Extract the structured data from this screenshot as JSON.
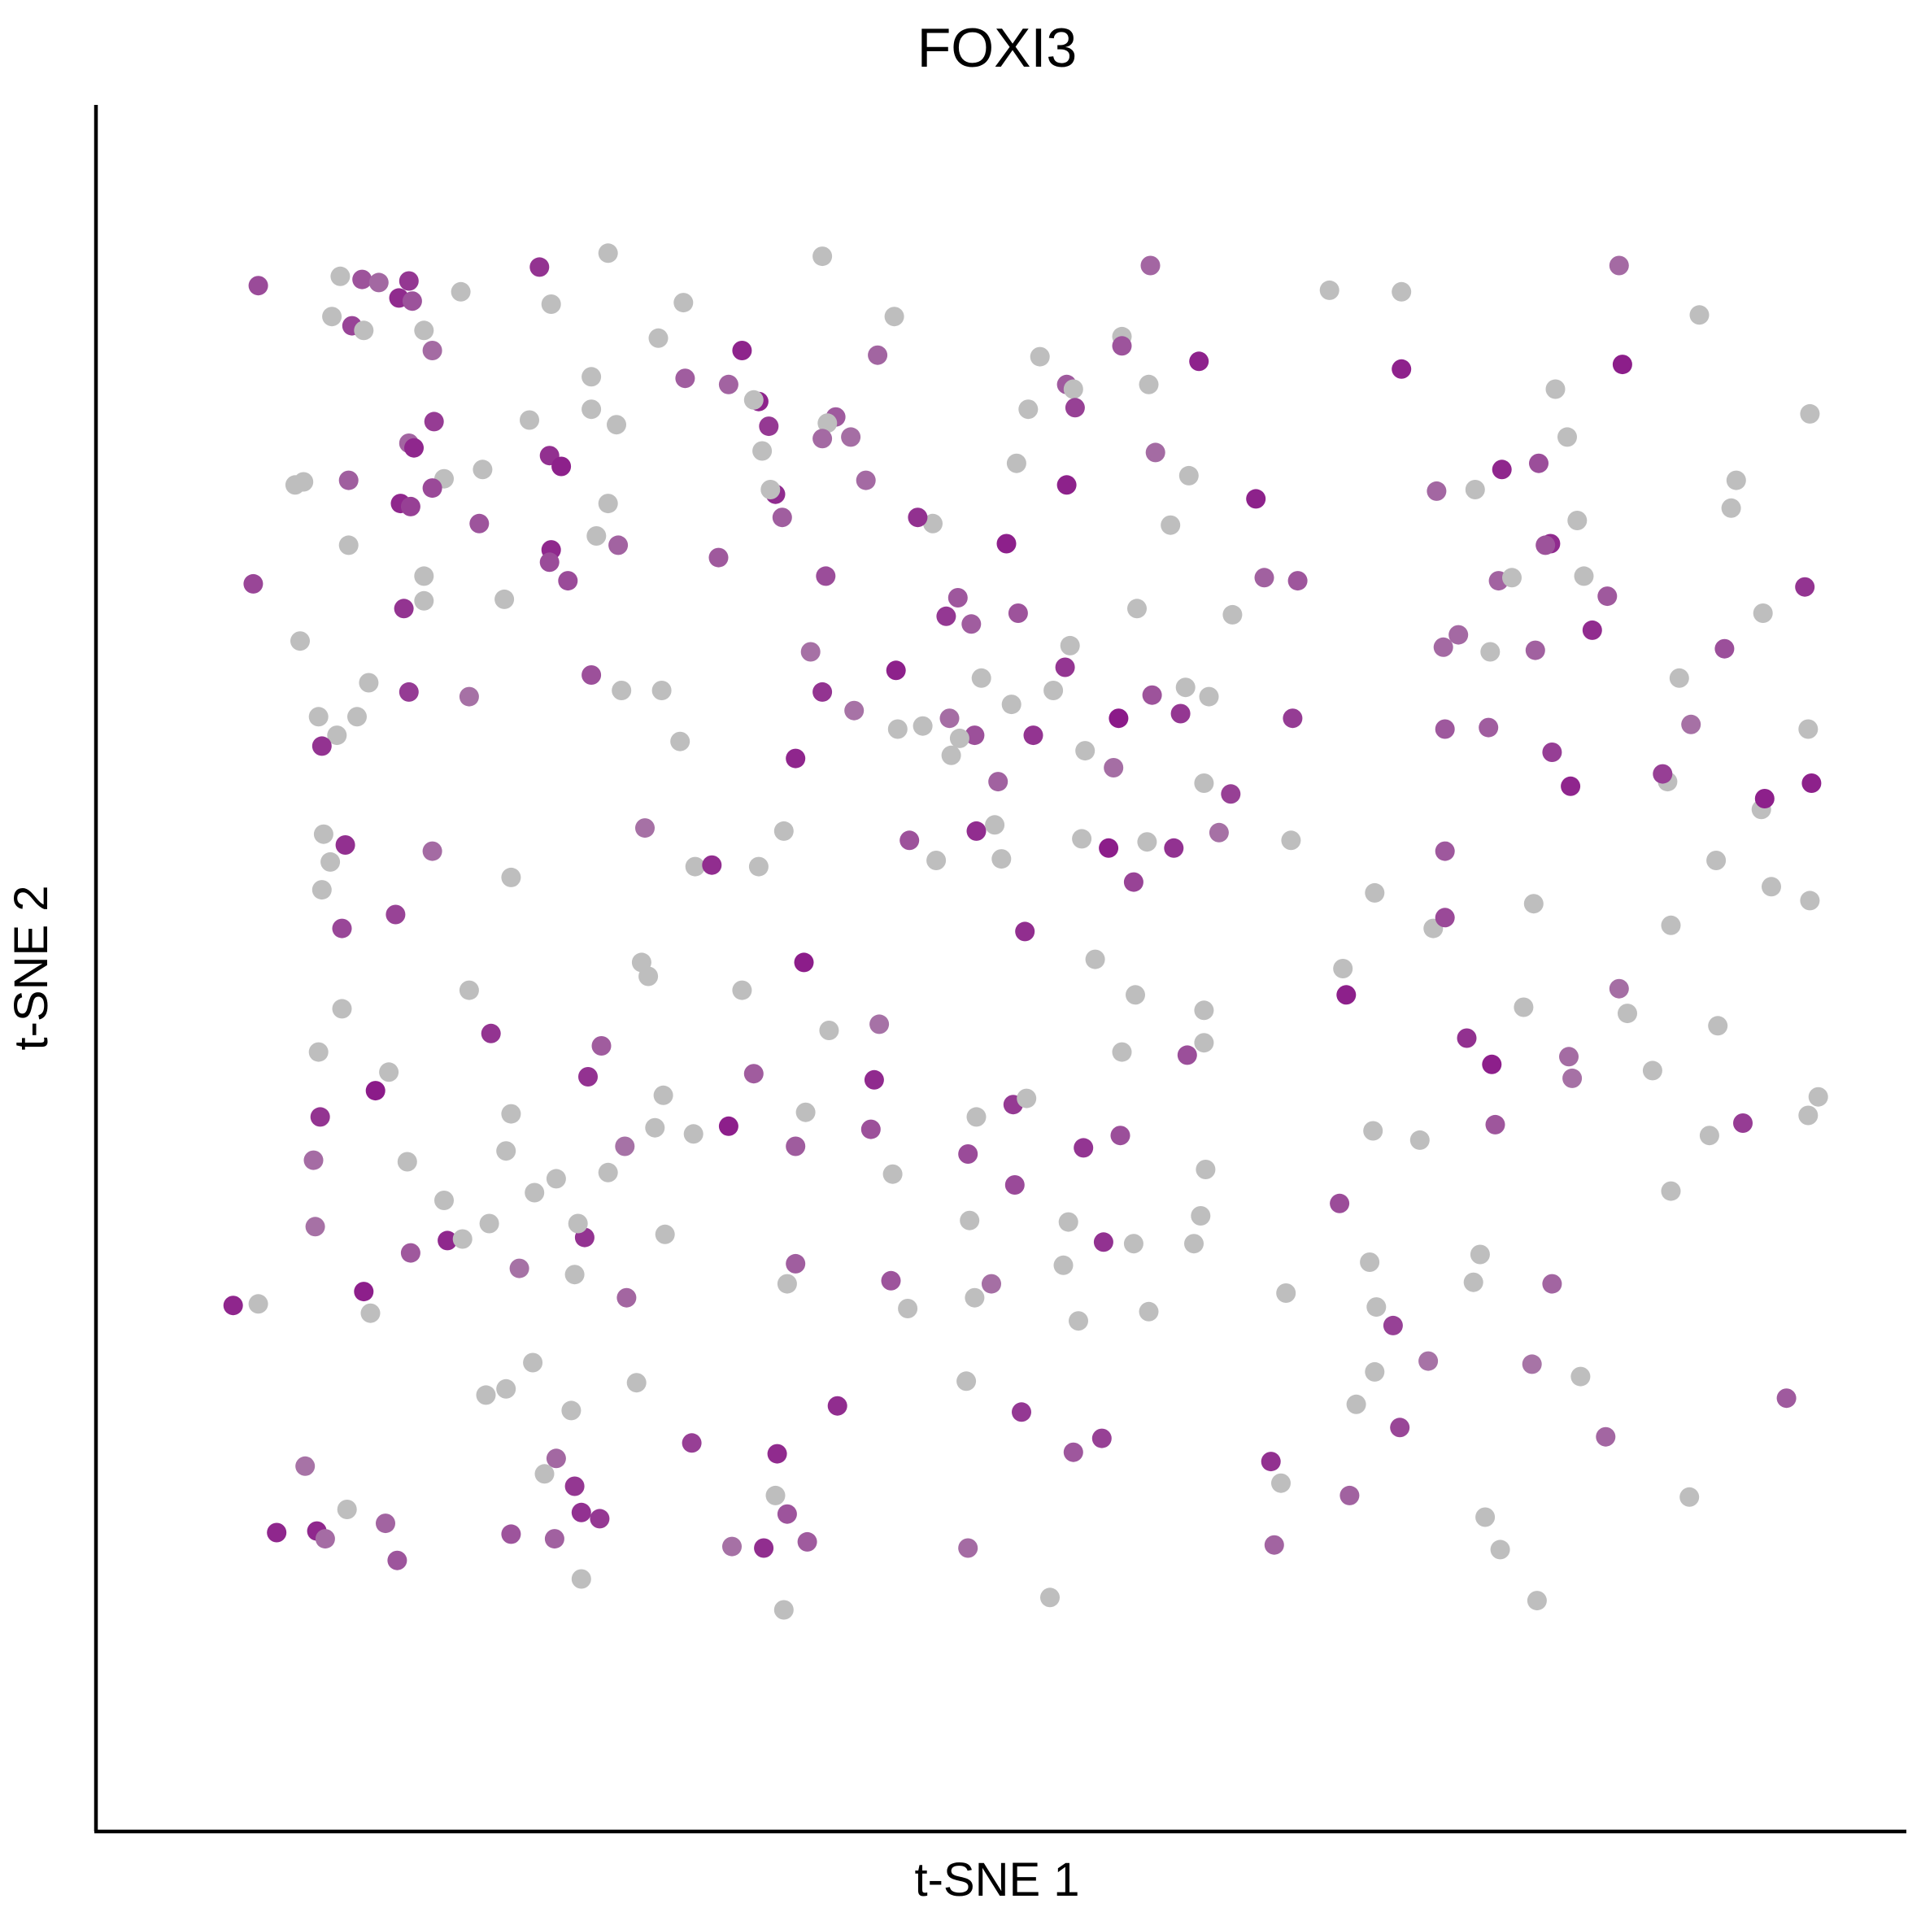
{
  "chart_data": {
    "type": "scatter",
    "title": "FOXI3",
    "xlabel": "t-SNE 1",
    "ylabel": "t-SNE 2",
    "xlim": [
      0,
      100
    ],
    "ylim": [
      0,
      100
    ],
    "axis_ticks_shown": false,
    "grid": false,
    "legend": "none",
    "color_scale": {
      "low": "#BEBEBE",
      "high": "#8B1A89"
    },
    "points": [
      [
        27.1,
        95.3
      ],
      [
        40.7,
        84.7
      ],
      [
        12.1,
        65.3
      ],
      [
        11.6,
        80.6
      ],
      [
        17.5,
        31.4
      ],
      [
        47.3,
        71.8
      ],
      [
        67.9,
        57.3
      ],
      [
        30.5,
        31.8
      ],
      [
        44.0,
        28.8
      ],
      [
        16.1,
        72.8
      ],
      [
        62.7,
        44.2
      ],
      [
        54.7,
        69.9
      ],
      [
        80.3,
        74.1
      ],
      [
        94.5,
        80.6
      ],
      [
        53.5,
        8.3
      ],
      [
        24.0,
        17.3
      ],
      [
        15.1,
        36.5
      ],
      [
        54.6,
        32.6
      ],
      [
        20.9,
        72.9
      ],
      [
        40.1,
        74.4
      ],
      [
        78.8,
        28.7
      ],
      [
        57.8,
        89.9
      ],
      [
        35.1,
        47.6
      ],
      [
        48.6,
        37.0
      ],
      [
        49.0,
        64.1
      ],
      [
        12.4,
        93.6
      ],
      [
        81.1,
        74.3
      ],
      [
        6.2,
        27.3
      ],
      [
        10.9,
        64.1
      ],
      [
        77.1,
        56.6
      ],
      [
        71.8,
        20.8
      ],
      [
        23.7,
        92.0
      ],
      [
        37.8,
        28.6
      ],
      [
        84.4,
        83.4
      ],
      [
        82.6,
        8.1
      ],
      [
        24.7,
        74.1
      ],
      [
        8.7,
        70.2
      ],
      [
        76.4,
        51.6
      ],
      [
        12.9,
        26.7
      ],
      [
        72.9,
        53.9
      ],
      [
        23.7,
        76.1
      ],
      [
        29.9,
        38.7
      ],
      [
        90.4,
        61.1
      ],
      [
        94.2,
        78.8
      ],
      [
        74.5,
        92.8
      ],
      [
        23.6,
        82.2
      ],
      [
        47.5,
        65.2
      ],
      [
        55.5,
        37.4
      ],
      [
        14.6,
        92.4
      ],
      [
        50.9,
        76.5
      ],
      [
        62.8,
        36.0
      ],
      [
        48.8,
        71.3
      ],
      [
        51.3,
        40.2
      ],
      [
        27.6,
        84.2
      ],
      [
        21.0,
        37.2
      ],
      [
        8.4,
        80.3
      ],
      [
        38.3,
        62.6
      ],
      [
        33.7,
        75.6
      ],
      [
        83.7,
        86.5
      ],
      [
        36.4,
        11.5
      ],
      [
        46.5,
        77.8
      ],
      [
        11.6,
        76.4
      ],
      [
        30.1,
        89.8
      ],
      [
        62.7,
        46.3
      ],
      [
        27.7,
        76.4
      ],
      [
        14.9,
        72.3
      ],
      [
        71.0,
        49.0
      ],
      [
        80.1,
        38.9
      ],
      [
        96.1,
        72.0
      ],
      [
        68.0,
        65.2
      ],
      [
        36.3,
        82.5
      ],
      [
        17.3,
        80.7
      ],
      [
        60.7,
        77.7
      ],
      [
        63.0,
        66.6
      ],
      [
        86.8,
        73.1
      ],
      [
        23.6,
        75.3
      ],
      [
        71.4,
        14.9
      ],
      [
        19.4,
        77.8
      ],
      [
        90.1,
        61.6
      ],
      [
        26.1,
        68.0
      ],
      [
        15.2,
        93.5
      ],
      [
        40.3,
        45.0
      ],
      [
        48.0,
        73.0
      ],
      [
        83.4,
        76.5
      ],
      [
        54.5,
        86.8
      ],
      [
        58.5,
        31.2
      ],
      [
        7.3,
        12.5
      ],
      [
        38.3,
        37.5
      ],
      [
        85.9,
        70.9
      ],
      [
        98.9,
        84.9
      ],
      [
        24.0,
        35.4
      ],
      [
        9.5,
        36.6
      ],
      [
        57.8,
        43.6
      ],
      [
        16.6,
        80.1
      ],
      [
        11.5,
        14.0
      ],
      [
        28.1,
        37.5
      ],
      [
        12.8,
        67.5
      ],
      [
        34.3,
        38.8
      ],
      [
        39.9,
        95.1
      ],
      [
        61.6,
        67.2
      ],
      [
        11.4,
        57.0
      ],
      [
        6.2,
        93.2
      ],
      [
        85.4,
        74.4
      ],
      [
        54.9,
        86.5
      ],
      [
        31.6,
        92.1
      ],
      [
        48.7,
        32.7
      ],
      [
        48.5,
        22.3
      ],
      [
        29.3,
        58.1
      ],
      [
        49.4,
        67.8
      ],
      [
        22.4,
        84.5
      ],
      [
        26.4,
        77.0
      ],
      [
        34.5,
        11.6
      ],
      [
        79.5,
        13.5
      ],
      [
        39.9,
        66.9
      ],
      [
        51.4,
        35.0
      ],
      [
        38.9,
        39.7
      ],
      [
        62.4,
        88.3
      ],
      [
        23.0,
        94.4
      ],
      [
        12.5,
        28.1
      ],
      [
        35.1,
        89.0
      ],
      [
        9.8,
        43.6
      ],
      [
        59.8,
        82.4
      ],
      [
        83.5,
        28.6
      ],
      [
        84.6,
        60.8
      ],
      [
        10.1,
        57.7
      ],
      [
        16.1,
        90.3
      ],
      [
        55.6,
        63.1
      ],
      [
        44.3,
        68.3
      ],
      [
        99.4,
        40.7
      ],
      [
        19.8,
        21.4
      ],
      [
        20.1,
        44.8
      ],
      [
        23.3,
        16.3
      ],
      [
        21.3,
        39.6
      ],
      [
        92.3,
        91.3
      ],
      [
        20.0,
        32.5
      ],
      [
        39.0,
        11.9
      ],
      [
        29.5,
        48.5
      ],
      [
        57.6,
        65.2
      ],
      [
        87.5,
        94.5
      ],
      [
        64.3,
        60.3
      ],
      [
        87.5,
        47.7
      ],
      [
        26.1,
        87.3
      ],
      [
        39.2,
        69.5
      ],
      [
        27.1,
        79.1
      ],
      [
        21.8,
        29.6
      ],
      [
        49.1,
        57.9
      ],
      [
        62.7,
        61.0
      ],
      [
        27.1,
        35.8
      ],
      [
        11.8,
        90.6
      ],
      [
        14.7,
        79.1
      ],
      [
        24.3,
        81.5
      ],
      [
        54.9,
        17.7
      ],
      [
        8.9,
        80.5
      ],
      [
        21.0,
        21.8
      ],
      [
        86.7,
        18.7
      ],
      [
        56.2,
        49.6
      ],
      [
        13.2,
        41.1
      ],
      [
        22.6,
        23.5
      ],
      [
        11.2,
        51.6
      ],
      [
        38.8,
        49.4
      ],
      [
        26.7,
        44.0
      ],
      [
        99.0,
        61.0
      ],
      [
        26.6,
        13.4
      ],
      [
        37.6,
        57.9
      ],
      [
        70.2,
        92.9
      ],
      [
        44.2,
        91.2
      ],
      [
        54.5,
        80.3
      ],
      [
        59.5,
        94.5
      ],
      [
        50.0,
        28.6
      ],
      [
        45.0,
        27.0
      ],
      [
        12.5,
        90.3
      ],
      [
        87.7,
        88.1
      ],
      [
        50.4,
        61.1
      ],
      [
        14.0,
        42.3
      ],
      [
        13.4,
        93.4
      ],
      [
        15.4,
        92.2
      ],
      [
        9.8,
        65.3
      ],
      [
        42.5,
        80.6
      ],
      [
        58.7,
        72.3
      ],
      [
        9.9,
        39.4
      ],
      [
        98.6,
        73.7
      ],
      [
        53.7,
        67.0
      ],
      [
        37.2,
        17.6
      ],
      [
        16.1,
        74.4
      ],
      [
        67.6,
        28.0
      ],
      [
        21.3,
        12.4
      ],
      [
        52.1,
        40.6
      ],
      [
        83.1,
        76.4
      ],
      [
        48.6,
        11.5
      ],
      [
        45.1,
        57.3
      ],
      [
        5.9,
        73.9
      ],
      [
        61.8,
        80.9
      ],
      [
        15.3,
        30.6
      ],
      [
        91.7,
        14.8
      ],
      [
        32.3,
        55.6
      ],
      [
        44.4,
        64.5
      ],
      [
        79.9,
        42.8
      ],
      [
        9.7,
        12.6
      ],
      [
        55.4,
        57.4
      ],
      [
        74.4,
        19.3
      ],
      [
        25.1,
        29.2
      ],
      [
        9.6,
        32.3
      ],
      [
        70.8,
        33.8
      ],
      [
        37.6,
        7.5
      ],
      [
        27.9,
        67.0
      ],
      [
        85.0,
        78.0
      ],
      [
        36.1,
        85.7
      ],
      [
        93.4,
        45.3
      ],
      [
        63.6,
        57.8
      ],
      [
        18.8,
        66.6
      ],
      [
        34.3,
        86.8
      ],
      [
        25.1,
        15.5
      ],
      [
        28.8,
        22.2
      ],
      [
        59.4,
        26.8
      ],
      [
        76.1,
        23.6
      ],
      [
        36.7,
        84.1
      ],
      [
        46.7,
        56.0
      ],
      [
        40.2,
        84.3
      ],
      [
        79.2,
        30.5
      ],
      [
        93.3,
        56.0
      ],
      [
        82.4,
        53.2
      ],
      [
        39.9,
        83.3
      ],
      [
        77.0,
        69.8
      ],
      [
        11.2,
        46.4
      ],
      [
        49.1,
        39.4
      ],
      [
        84.5,
        43.3
      ],
      [
        4.7,
        27.2
      ],
      [
        15.2,
        83.0
      ],
      [
        15.5,
        82.7
      ],
      [
        65.8,
        79.4
      ],
      [
        54.4,
        68.5
      ],
      [
        81.8,
        46.5
      ],
      [
        54.3,
        29.8
      ],
      [
        43.2,
        88.7
      ],
      [
        17.3,
        34.0
      ],
      [
        45.6,
        78.2
      ],
      [
        32.1,
        18.3
      ],
      [
        14.5,
        10.7
      ],
      [
        52.5,
        64.1
      ],
      [
        30.4,
        40.8
      ],
      [
        90.6,
        34.6
      ],
      [
        59.6,
        66.7
      ],
      [
        91.8,
        64.8
      ],
      [
        16.6,
        56.6
      ],
      [
        80.5,
        81.3
      ],
      [
        59.4,
        86.8
      ],
      [
        18.8,
        47.6
      ],
      [
        52.9,
        88.6
      ],
      [
        10.5,
        55.9
      ],
      [
        15.3,
        78.9
      ],
      [
        57.8,
        89.3
      ],
      [
        35.8,
        85.8
      ],
      [
        13.8,
        13.1
      ],
      [
        90.6,
        51.8
      ],
      [
        98.8,
        64.5
      ],
      [
        50.2,
        58.3
      ],
      [
        93.8,
        69.7
      ],
      [
        96.0,
        59.3
      ],
      [
        43.0,
        41.8
      ],
      [
        57.0,
        56.8
      ],
      [
        18.3,
        92.8
      ],
      [
        18.4,
        31.5
      ],
      [
        10.0,
        63.4
      ],
      [
        72.9,
        22.9
      ],
      [
        89.5,
        42.4
      ],
      [
        37.1,
        79.7
      ],
      [
        82.7,
        81.7
      ],
      [
        96.2,
        60.0
      ],
      [
        38.3,
        29.9
      ],
      [
        36.8,
        80.0
      ],
      [
        21.3,
        54.9
      ],
      [
        37.1,
        14.9
      ],
      [
        10.2,
        12.1
      ],
      [
        57.3,
        62.0
      ],
      [
        79.7,
        64.6
      ],
      [
        44.1,
        35.7
      ],
      [
        85.2,
        22.6
      ],
      [
        14.4,
        52.5
      ],
      [
        96.6,
        54.3
      ],
      [
        74.5,
        87.8
      ],
      [
        25.5,
        9.5
      ],
      [
        52.2,
        85.2
      ],
      [
        36.1,
        55.6
      ],
      [
        48.1,
        63.9
      ],
      [
        60.9,
        56.8
      ],
      [
        77.1,
        52.3
      ],
      [
        10.0,
        54.1
      ],
      [
        45.9,
        64.7
      ],
      [
        88.0,
        46.1
      ],
      [
        25.7,
        31.6
      ],
      [
        28.2,
        27.7
      ],
      [
        10.6,
        91.2
      ],
      [
        16.7,
        84.4
      ],
      [
        51.2,
        66.1
      ],
      [
        61.3,
        65.5
      ],
      [
        41.8,
        65.7
      ],
      [
        62.1,
        31.2
      ],
      [
        57.7,
        38.2
      ],
      [
        26.1,
        85.2
      ],
      [
        75.6,
        37.9
      ],
      [
        71.2,
        47.3
      ],
      [
        72.6,
        30.0
      ],
      [
        58.5,
        54.6
      ],
      [
        97.5,
        21.2
      ],
      [
        77.9,
        70.6
      ],
      [
        98.8,
        39.5
      ],
      [
        55.2,
        26.2
      ],
      [
        16.6,
        89.0
      ],
      [
        52.0,
        51.4
      ],
      [
        64.4,
        71.9
      ],
      [
        74.0,
        25.9
      ],
      [
        77.1,
        64.5
      ],
      [
        58.6,
        47.3
      ],
      [
        11.1,
        93.8
      ],
      [
        72.8,
        38.5
      ],
      [
        41.6,
        83.4
      ],
      [
        29.1,
        49.4
      ],
      [
        82.3,
        23.4
      ],
      [
        42.8,
        38.6
      ],
      [
        50.6,
        56.1
      ],
      [
        61.7,
        43.4
      ],
      [
        40.8,
        20.7
      ],
      [
        15.2,
        66.9
      ],
      [
        35.8,
        42.2
      ],
      [
        83.5,
        63.0
      ],
      [
        19.6,
        81.3
      ],
      [
        66.9,
        11.7
      ],
      [
        91.1,
        67.8
      ],
      [
        59.3,
        57.2
      ],
      [
        51.6,
        72.0
      ],
      [
        56.6,
        18.6
      ],
      [
        62.5,
        33.0
      ],
      [
        84.7,
        41.9
      ],
      [
        51.8,
        20.3
      ],
      [
        47.6,
        62.8
      ],
      [
        80.4,
        11.4
      ],
      [
        67.3,
        15.7
      ],
      [
        73.0,
        27.1
      ],
      [
        82.5,
        69.6
      ],
      [
        30.3,
        67.0
      ],
      [
        79.8,
        69.5
      ],
      [
        37.5,
        78.2
      ],
      [
        25.5,
        13.8
      ],
      [
        43.3,
        45.4
      ],
      [
        24.9,
        20.4
      ],
      [
        31.4,
        63.7
      ],
      [
        37.8,
        13.7
      ],
      [
        68.3,
        74.1
      ],
      [
        33.3,
        55.7
      ],
      [
        22.7,
        34.5
      ],
      [
        31.7,
        87.2
      ],
      [
        25.3,
        32.5
      ],
      [
        94.9,
        39.0
      ],
      [
        49.0,
        27.7
      ],
      [
        78.9,
        80.0
      ],
      [
        25.9,
        42.0
      ],
      [
        9.0,
        16.8
      ],
      [
        32.2,
        38.3
      ],
      [
        23.9,
        12.1
      ],
      [
        92.9,
        38.2
      ],
      [
        78.4,
        44.5
      ],
      [
        51.5,
        81.7
      ],
      [
        66.3,
        74.3
      ],
      [
        55.0,
        85.3
      ],
      [
        76.6,
        79.9
      ],
      [
        56.7,
        31.3
      ],
      [
        66.7,
        17.1
      ],
      [
        98.9,
        53.4
      ]
    ]
  }
}
